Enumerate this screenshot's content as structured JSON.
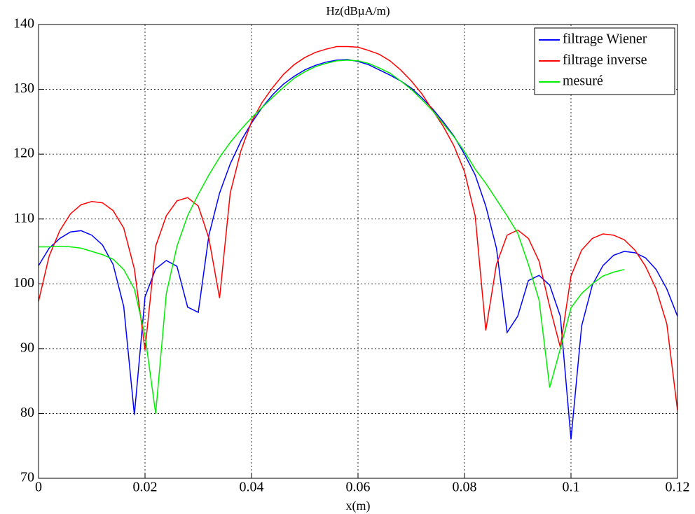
{
  "chart_data": {
    "type": "line",
    "title": "Hz(dBµA/m)",
    "x_label": "x(m)",
    "x": [
      0,
      0.002,
      0.004,
      0.006,
      0.008,
      0.01,
      0.012,
      0.014,
      0.016,
      0.018,
      0.02,
      0.022,
      0.024,
      0.026,
      0.028,
      0.03,
      0.032,
      0.034,
      0.036,
      0.038,
      0.04,
      0.042,
      0.044,
      0.046,
      0.048,
      0.05,
      0.052,
      0.054,
      0.056,
      0.058,
      0.06,
      0.062,
      0.064,
      0.066,
      0.068,
      0.07,
      0.072,
      0.074,
      0.076,
      0.078,
      0.08,
      0.082,
      0.084,
      0.086,
      0.088,
      0.09,
      0.092,
      0.094,
      0.096,
      0.098,
      0.1,
      0.102,
      0.104,
      0.106,
      0.108,
      0.11,
      0.112,
      0.114,
      0.116,
      0.118,
      0.12
    ],
    "series": [
      {
        "name": "filtrage Wiener",
        "color": "#0000ff",
        "values": [
          102.8,
          105.5,
          107,
          108,
          108.2,
          107.5,
          106,
          103,
          96.5,
          79.8,
          98,
          102.3,
          103.6,
          102.7,
          96.4,
          95.6,
          107.5,
          114,
          118.5,
          122,
          124.8,
          127.2,
          129.2,
          130.8,
          132,
          133,
          133.7,
          134.2,
          134.5,
          134.6,
          134.3,
          133.8,
          133,
          132.2,
          131.3,
          130.2,
          128.7,
          127,
          125,
          122.8,
          120,
          116.8,
          112,
          105.5,
          92.5,
          95,
          100.5,
          101.3,
          99.8,
          95,
          76,
          93.5,
          99.8,
          102.8,
          104.4,
          105,
          104.8,
          104,
          102.2,
          99.2,
          95
        ]
      },
      {
        "name": "filtrage inverse",
        "color": "#ff0000",
        "values": [
          97.3,
          104.3,
          108.2,
          110.8,
          112.2,
          112.7,
          112.5,
          111.3,
          108.6,
          102.3,
          89.8,
          105.8,
          110.5,
          112.8,
          113.3,
          112,
          107,
          97.8,
          114,
          120.5,
          125,
          128,
          130.3,
          132.3,
          133.8,
          134.9,
          135.7,
          136.2,
          136.6,
          136.6,
          136.5,
          136,
          135.4,
          134.4,
          133,
          131.3,
          129.3,
          126.8,
          124.3,
          121.3,
          117.3,
          110.5,
          92.8,
          103,
          107.5,
          108.3,
          107,
          103.5,
          96.5,
          90.2,
          101.2,
          105.2,
          107,
          107.7,
          107.5,
          106.8,
          105.2,
          102.7,
          99.2,
          93.8,
          80.5
        ]
      },
      {
        "name": "mesuré",
        "color": "#00ee00",
        "values": [
          105.7,
          105.7,
          105.8,
          105.7,
          105.5,
          105,
          104.5,
          103.8,
          102.2,
          99.2,
          92,
          80,
          98.5,
          105.8,
          110.5,
          113.8,
          116.8,
          119.5,
          121.8,
          123.8,
          125.6,
          127.2,
          128.8,
          130.3,
          131.7,
          132.7,
          133.5,
          134,
          134.4,
          134.5,
          134.4,
          134,
          133.3,
          132.5,
          131.3,
          130,
          128.4,
          126.7,
          124.7,
          122.7,
          120.4,
          117.7,
          115.5,
          113,
          110.5,
          107.8,
          103,
          97.5,
          84,
          90,
          96.3,
          98.5,
          100,
          101.2,
          101.8,
          102.2,
          null,
          null,
          null,
          null,
          null
        ]
      }
    ],
    "xlim": [
      0,
      0.12
    ],
    "xticks": [
      0,
      0.02,
      0.04,
      0.06,
      0.08,
      0.1,
      0.12
    ],
    "ylim": [
      70,
      140
    ],
    "yticks": [
      70,
      80,
      90,
      100,
      110,
      120,
      130,
      140
    ],
    "grid": true,
    "legend": "upper right"
  }
}
